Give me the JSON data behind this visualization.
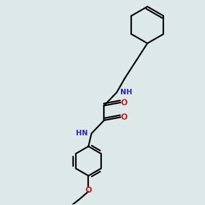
{
  "background_color": "#dde8e8",
  "bond_color": "#000000",
  "N_color": "#2222cc",
  "O_color": "#cc2222",
  "line_width": 1.6,
  "figsize": [
    3.0,
    3.0
  ],
  "dpi": 100,
  "xlim": [
    0,
    10
  ],
  "ylim": [
    0,
    10
  ]
}
